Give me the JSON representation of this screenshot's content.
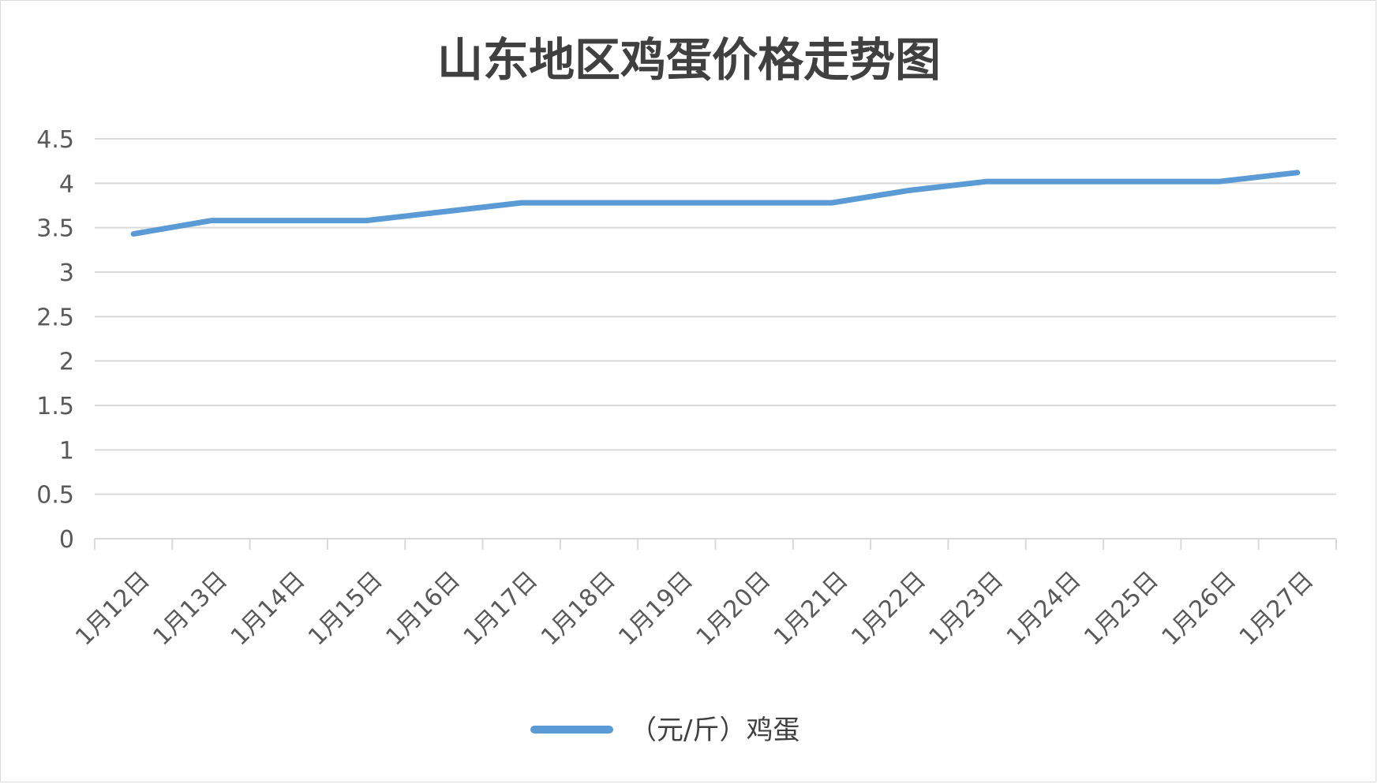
{
  "chart_data": {
    "type": "line",
    "title": "山东地区鸡蛋价格走势图",
    "categories": [
      "1月12日",
      "1月13日",
      "1月14日",
      "1月15日",
      "1月16日",
      "1月17日",
      "1月18日",
      "1月19日",
      "1月20日",
      "1月21日",
      "1月22日",
      "1月23日",
      "1月24日",
      "1月25日",
      "1月26日",
      "1月27日"
    ],
    "series": [
      {
        "name": "（元/斤）鸡蛋",
        "color": "#5b9bd5",
        "values": [
          3.43,
          3.58,
          3.58,
          3.58,
          3.68,
          3.78,
          3.78,
          3.78,
          3.78,
          3.78,
          3.92,
          4.02,
          4.02,
          4.02,
          4.02,
          4.12
        ]
      }
    ],
    "ylim": [
      0,
      4.5
    ],
    "yticks": [
      "0",
      "0.5",
      "1",
      "1.5",
      "2",
      "2.5",
      "3",
      "3.5",
      "4",
      "4.5"
    ],
    "xlabel": "",
    "ylabel": "",
    "grid": true,
    "legend_position": "bottom"
  }
}
